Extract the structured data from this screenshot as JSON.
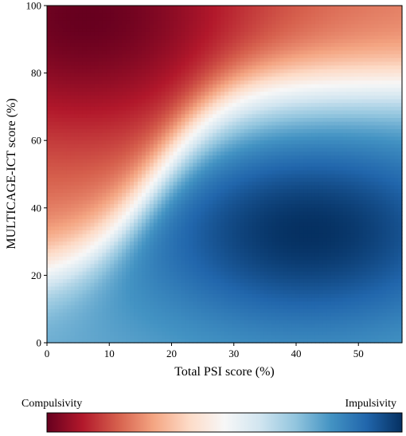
{
  "chart_data": {
    "type": "heatmap",
    "title": "",
    "xlabel": "Total PSI score (%)",
    "ylabel": "MULTICAGE-ICT score (%)",
    "xlim": [
      0,
      57
    ],
    "ylim": [
      0,
      100
    ],
    "xticks": [
      0,
      10,
      20,
      30,
      40,
      50
    ],
    "yticks": [
      0,
      20,
      40,
      60,
      80,
      100
    ],
    "colormap": "RdBu",
    "colorbar": {
      "orientation": "horizontal",
      "placement": "bottom",
      "left_label": "Compulsivity",
      "right_label": "Impulsivity",
      "stops": [
        "#67001f",
        "#b2182b",
        "#d6604d",
        "#f4a582",
        "#fddbc7",
        "#f7f7f7",
        "#d1e5f0",
        "#92c5de",
        "#4393c3",
        "#2166ac",
        "#053061"
      ]
    },
    "field": {
      "description_values": "value in [-1,1]; -1 = compulsivity (dark red), +1 = impulsivity (dark blue)",
      "impulsivity_peak": {
        "x": 42,
        "y": 33,
        "value": 1.0
      },
      "compulsivity_peak": {
        "x": 6,
        "y": 95,
        "value": -1.0
      }
    }
  }
}
